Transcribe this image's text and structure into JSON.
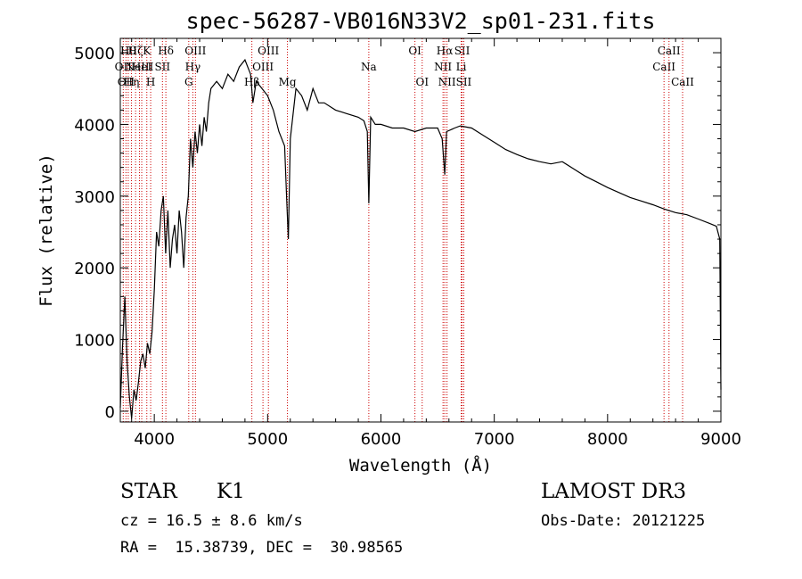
{
  "chart_data": {
    "type": "line",
    "title": "spec-56287-VB016N33V2_sp01-231.fits",
    "xlabel": "Wavelength (Å)",
    "ylabel": "Flux (relative)",
    "xlim": [
      3700,
      9000
    ],
    "ylim": [
      -150,
      5200
    ],
    "xticks": [
      4000,
      5000,
      6000,
      7000,
      8000,
      9000
    ],
    "yticks": [
      0,
      1000,
      2000,
      3000,
      4000,
      5000
    ],
    "grid": false,
    "series": [
      {
        "color": "#000000",
        "x": [
          3700,
          3720,
          3740,
          3760,
          3780,
          3800,
          3820,
          3840,
          3860,
          3880,
          3900,
          3920,
          3940,
          3960,
          3980,
          4000,
          4020,
          4040,
          4060,
          4080,
          4100,
          4120,
          4140,
          4160,
          4180,
          4200,
          4220,
          4240,
          4260,
          4280,
          4300,
          4320,
          4340,
          4360,
          4380,
          4400,
          4420,
          4440,
          4460,
          4480,
          4500,
          4550,
          4600,
          4650,
          4700,
          4750,
          4800,
          4850,
          4870,
          4900,
          4950,
          5000,
          5050,
          5100,
          5150,
          5170,
          5183,
          5200,
          5250,
          5300,
          5350,
          5400,
          5450,
          5500,
          5600,
          5700,
          5800,
          5850,
          5880,
          5893,
          5910,
          5950,
          6000,
          6100,
          6200,
          6300,
          6400,
          6500,
          6540,
          6563,
          6580,
          6650,
          6700,
          6800,
          6900,
          7000,
          7100,
          7200,
          7300,
          7400,
          7500,
          7600,
          7700,
          7800,
          7900,
          8000,
          8100,
          8200,
          8300,
          8400,
          8500,
          8600,
          8700,
          8800,
          8900,
          8960,
          8990,
          9000
        ],
        "y": [
          50,
          900,
          1600,
          700,
          200,
          -100,
          300,
          150,
          400,
          700,
          800,
          600,
          950,
          800,
          1100,
          1700,
          2500,
          2300,
          2800,
          3000,
          2200,
          2800,
          2000,
          2400,
          2600,
          2200,
          2800,
          2500,
          2000,
          2700,
          3000,
          3800,
          3400,
          3900,
          3600,
          4000,
          3700,
          4100,
          3900,
          4300,
          4500,
          4600,
          4500,
          4700,
          4600,
          4800,
          4900,
          4700,
          4300,
          4600,
          4500,
          4400,
          4200,
          3900,
          3700,
          2900,
          2400,
          3800,
          4500,
          4400,
          4200,
          4500,
          4300,
          4300,
          4200,
          4150,
          4100,
          4050,
          3900,
          2900,
          4100,
          4000,
          4000,
          3950,
          3950,
          3900,
          3950,
          3950,
          3800,
          3300,
          3900,
          3950,
          3980,
          3950,
          3850,
          3750,
          3650,
          3580,
          3520,
          3480,
          3450,
          3480,
          3380,
          3280,
          3200,
          3120,
          3050,
          2980,
          2930,
          2880,
          2820,
          2770,
          2740,
          2680,
          2620,
          2580,
          2400,
          300
        ]
      }
    ],
    "line_markers": [
      {
        "x": 3726,
        "labels": [
          "OII"
        ],
        "row": 1
      },
      {
        "x": 3750,
        "labels": [
          "OII"
        ],
        "row": 2
      },
      {
        "x": 3770,
        "labels": [
          "Hθ"
        ],
        "row": 0
      },
      {
        "x": 3798,
        "labels": [
          "Hη"
        ],
        "row": 2
      },
      {
        "x": 3835,
        "labels": [
          "Hζ"
        ],
        "row": 0
      },
      {
        "x": 3869,
        "labels": [
          "NeIII"
        ],
        "row": 1
      },
      {
        "x": 3889,
        "labels": [
          "HeI"
        ],
        "row": 1
      },
      {
        "x": 3934,
        "labels": [
          "K"
        ],
        "row": 0
      },
      {
        "x": 3968,
        "labels": [
          "H"
        ],
        "row": 2
      },
      {
        "x": 4072,
        "labels": [
          "SII"
        ],
        "row": 1
      },
      {
        "x": 4102,
        "labels": [
          "Hδ"
        ],
        "row": 0
      },
      {
        "x": 4304,
        "labels": [
          "G"
        ],
        "row": 2
      },
      {
        "x": 4340,
        "labels": [
          "Hγ"
        ],
        "row": 1
      },
      {
        "x": 4363,
        "labels": [
          "OIII"
        ],
        "row": 0
      },
      {
        "x": 4861,
        "labels": [
          "Hβ"
        ],
        "row": 2
      },
      {
        "x": 4959,
        "labels": [
          "OIII"
        ],
        "row": 1
      },
      {
        "x": 5007,
        "labels": [
          "OIII"
        ],
        "row": 0
      },
      {
        "x": 5175,
        "labels": [
          "Mg"
        ],
        "row": 2
      },
      {
        "x": 5893,
        "labels": [
          "Na"
        ],
        "row": 1
      },
      {
        "x": 6300,
        "labels": [
          "OI"
        ],
        "row": 0
      },
      {
        "x": 6364,
        "labels": [
          "OI"
        ],
        "row": 2
      },
      {
        "x": 6548,
        "labels": [
          "NII"
        ],
        "row": 1
      },
      {
        "x": 6563,
        "labels": [
          "Hα"
        ],
        "row": 0
      },
      {
        "x": 6583,
        "labels": [
          "NII"
        ],
        "row": 2
      },
      {
        "x": 6708,
        "labels": [
          "Li"
        ],
        "row": 1
      },
      {
        "x": 6716,
        "labels": [
          "SII"
        ],
        "row": 0
      },
      {
        "x": 6731,
        "labels": [
          "SII"
        ],
        "row": 2
      },
      {
        "x": 8498,
        "labels": [
          "CaII"
        ],
        "row": 1
      },
      {
        "x": 8542,
        "labels": [
          "CaII"
        ],
        "row": 0
      },
      {
        "x": 8662,
        "labels": [
          "CaII"
        ],
        "row": 2
      }
    ],
    "marker_color": "#cc0000"
  },
  "info": {
    "class": "STAR",
    "subclass": "K1",
    "survey": "LAMOST DR3",
    "cz": "cz = 16.5 ± 8.6 km/s",
    "obs_date": "Obs-Date: 20121225",
    "coords": "RA =  15.38739, DEC =  30.98565"
  }
}
